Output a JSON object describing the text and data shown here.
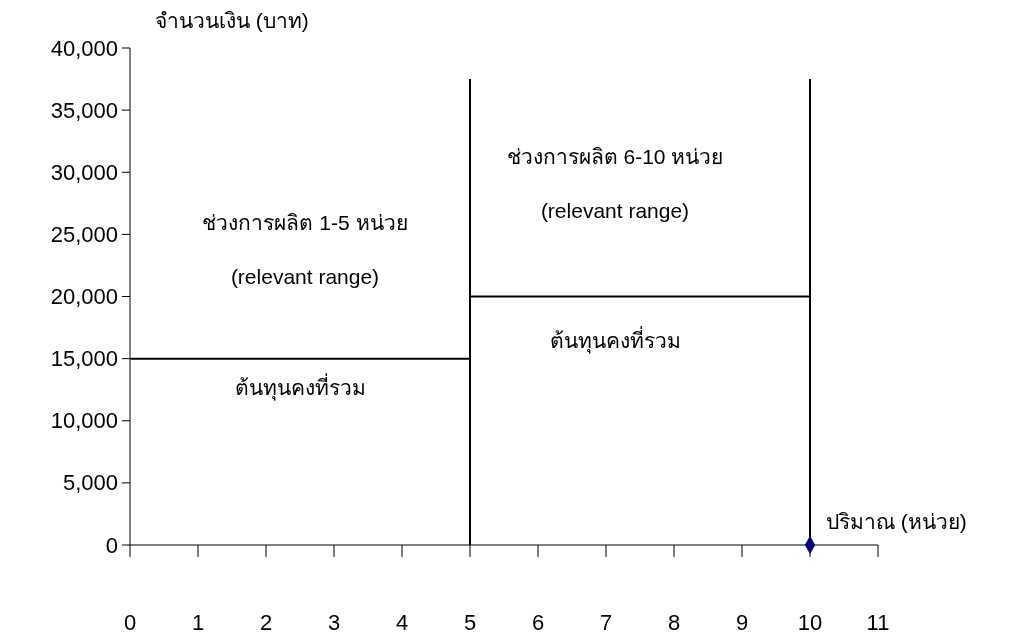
{
  "chart_data": {
    "type": "line",
    "xlabel": "ปริมาณ (หน่วย)",
    "ylabel": "จำนวนเงิน (บาท)",
    "xlim": [
      0,
      11
    ],
    "xticks": [
      0,
      1,
      2,
      3,
      4,
      5,
      6,
      7,
      8,
      9,
      10,
      11
    ],
    "ylim": [
      0,
      40000
    ],
    "yticks": [
      {
        "value": 0,
        "label": "0"
      },
      {
        "value": 5000,
        "label": "5,000"
      },
      {
        "value": 10000,
        "label": "10,000"
      },
      {
        "value": 15000,
        "label": "15,000"
      },
      {
        "value": 20000,
        "label": "20,000"
      },
      {
        "value": 25000,
        "label": "25,000"
      },
      {
        "value": 30000,
        "label": "30,000"
      },
      {
        "value": 35000,
        "label": "35,000"
      },
      {
        "value": 40000,
        "label": "40,000"
      }
    ],
    "grid": false,
    "marker": "none",
    "line_style": "solid",
    "series": [
      {
        "color": "#000000",
        "x": [
          0,
          5
        ],
        "values": [
          15000,
          15000
        ]
      },
      {
        "color": "#000000",
        "x": [
          5,
          10
        ],
        "values": [
          20000,
          20000
        ]
      },
      {
        "color": "#000000",
        "x": [
          5,
          5
        ],
        "values": [
          0,
          37500
        ]
      },
      {
        "color": "#000000",
        "x": [
          10,
          10
        ],
        "values": [
          0,
          37500
        ]
      },
      {
        "type": "scatter",
        "color": "#000080",
        "marker": "diamond",
        "x": [
          10
        ],
        "values": [
          0
        ]
      }
    ],
    "annotations": [
      "ช่วงการผลิต 1-5 หน่วย",
      "(relevant range)",
      "ต้นทุนคงที่รวม",
      "ช่วงการผลิต 6-10 หน่วย",
      "(relevant range)",
      "ต้นทุนคงที่รวม"
    ]
  }
}
